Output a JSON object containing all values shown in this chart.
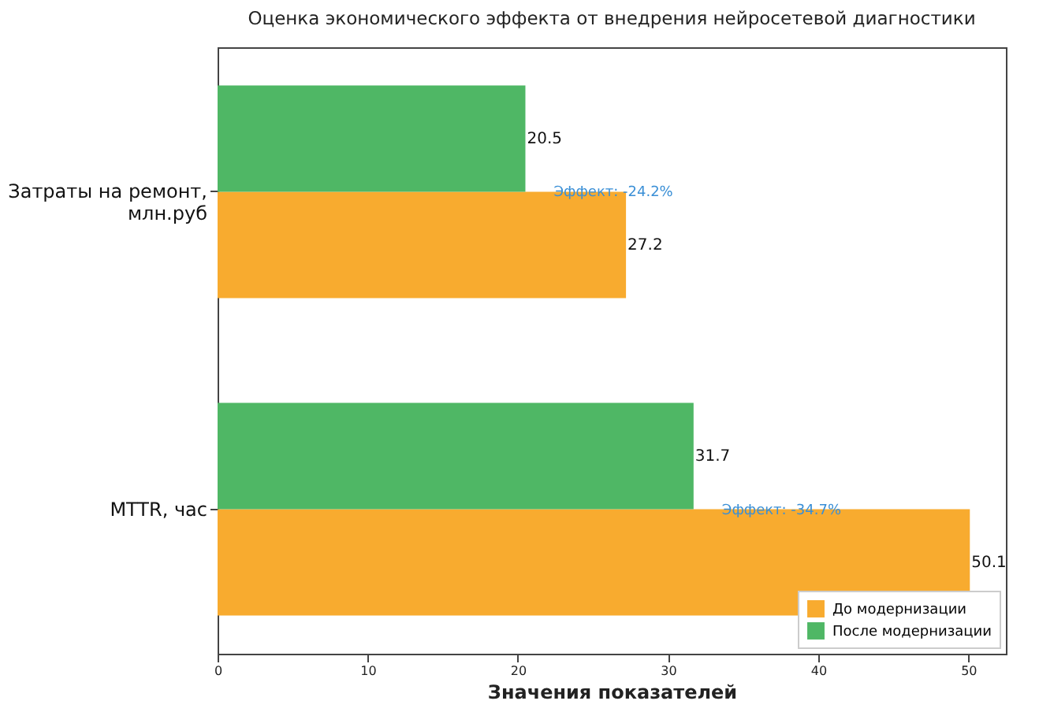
{
  "chart_data": {
    "type": "bar",
    "orientation": "horizontal",
    "title": "Оценка экономического эффекта от внедрения нейросетевой диагностики",
    "xlabel": "Значения показателей",
    "categories": [
      "Затраты на ремонт,\nмлн.руб",
      "MTTR, час"
    ],
    "series": [
      {
        "name": "До модернизации",
        "color": "#f8ab2f",
        "values": [
          27.2,
          50.1
        ]
      },
      {
        "name": "После модернизации",
        "color": "#4fb765",
        "values": [
          20.5,
          31.7
        ]
      }
    ],
    "xlim": [
      0,
      52.5
    ],
    "xticks": [
      0,
      10,
      20,
      30,
      40,
      50
    ],
    "grid": false,
    "legend": "bottom right",
    "data_labels": true,
    "annotations": [
      "Эффект: -24.2%",
      "Эффект: -34.7%"
    ]
  }
}
